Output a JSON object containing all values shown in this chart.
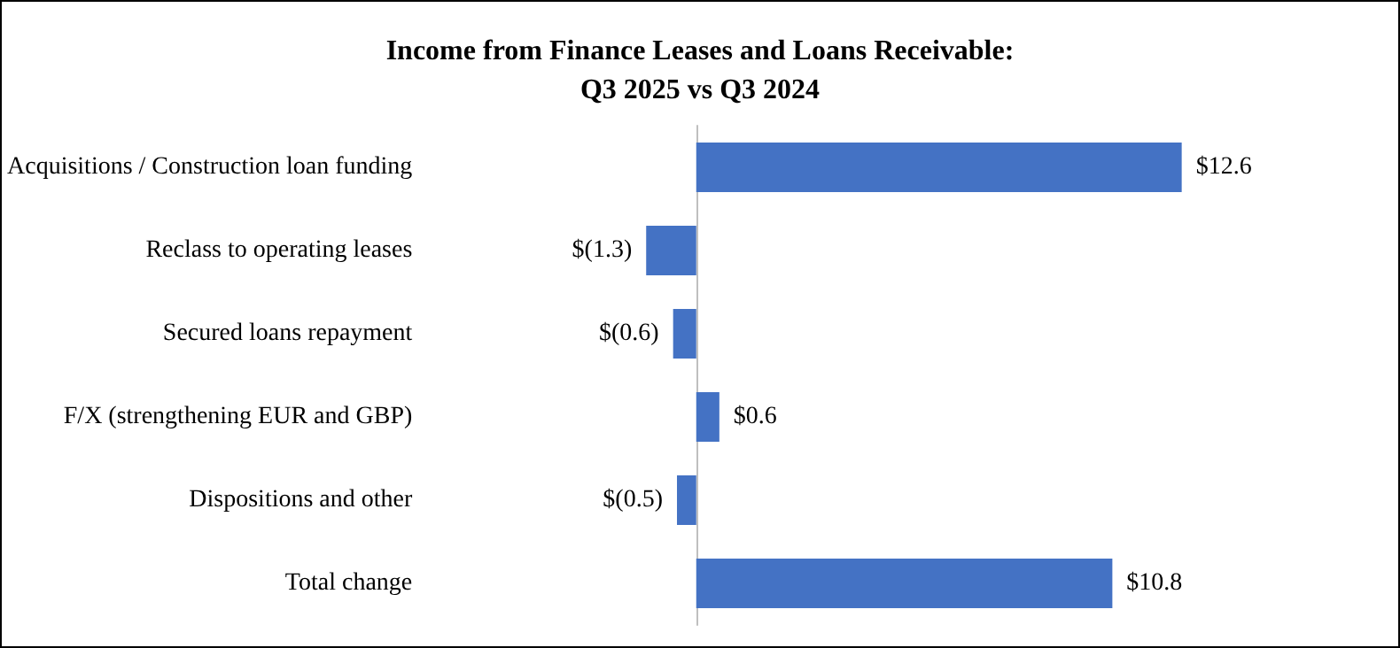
{
  "chart_data": {
    "type": "bar",
    "orientation": "horizontal",
    "title": "Income from Finance Leases and Loans Receivable:\nQ3 2025 vs Q3 2024",
    "categories": [
      "Acquisitions / Construction loan funding",
      "Reclass to operating leases",
      "Secured loans repayment",
      "F/X (strengthening EUR and GBP)",
      "Dispositions and other",
      "Total change"
    ],
    "values": [
      12.6,
      -1.3,
      -0.6,
      0.6,
      -0.5,
      10.8
    ],
    "value_labels": [
      "$12.6",
      "$(1.3)",
      "$(0.6)",
      "$0.6",
      "$(0.5)",
      "$10.8"
    ],
    "color": "#4472c4"
  }
}
